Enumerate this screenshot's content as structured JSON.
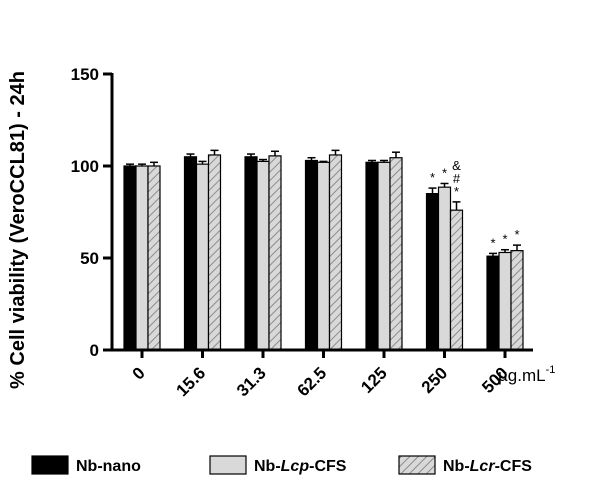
{
  "chart_data": {
    "type": "bar",
    "ylabel": "% Cell viability (VeroCCL81) - 24h",
    "xunit_main": "µg.mL",
    "xunit_sup": "-1",
    "ylim": [
      0,
      150
    ],
    "yticks": [
      0,
      50,
      100,
      150
    ],
    "categories": [
      "0",
      "15.6",
      "31.3",
      "62.5",
      "125",
      "250",
      "500"
    ],
    "series": [
      {
        "name": "Nb-nano",
        "name_parts": [
          {
            "t": "Nb-nano",
            "i": false
          }
        ],
        "fill": "#000000",
        "pattern": "solid",
        "values": [
          100,
          105,
          105,
          103,
          102,
          85,
          51
        ],
        "errors": [
          1,
          1.5,
          1.5,
          1.5,
          1,
          3,
          1.5
        ],
        "annotations": [
          "",
          "",
          "",
          "",
          "",
          "*",
          "*"
        ]
      },
      {
        "name": "Nb-Lcp-CFS",
        "name_parts": [
          {
            "t": "Nb-",
            "i": false
          },
          {
            "t": "Lcp",
            "i": true
          },
          {
            "t": "-CFS",
            "i": false
          }
        ],
        "fill": "#d9d9d9",
        "pattern": "solid",
        "values": [
          100,
          101,
          102.5,
          102,
          102,
          88.5,
          53
        ],
        "errors": [
          1,
          1.5,
          1,
          0.5,
          1,
          2,
          1.5
        ],
        "annotations": [
          "",
          "",
          "",
          "",
          "",
          "*",
          "*"
        ]
      },
      {
        "name": "Nb-Lcr-CFS",
        "name_parts": [
          {
            "t": "Nb-",
            "i": false
          },
          {
            "t": "Lcr",
            "i": true
          },
          {
            "t": "-CFS",
            "i": false
          }
        ],
        "fill": "#d9d9d9",
        "pattern": "hatch",
        "values": [
          100,
          106,
          105.5,
          106,
          104.5,
          76,
          54
        ],
        "errors": [
          2,
          2.5,
          2.5,
          2.5,
          3,
          4.5,
          3
        ],
        "annotations": [
          "",
          "",
          "",
          "",
          "",
          "* # &",
          "*"
        ]
      }
    ],
    "grid": false,
    "legend_position": "bottom"
  }
}
